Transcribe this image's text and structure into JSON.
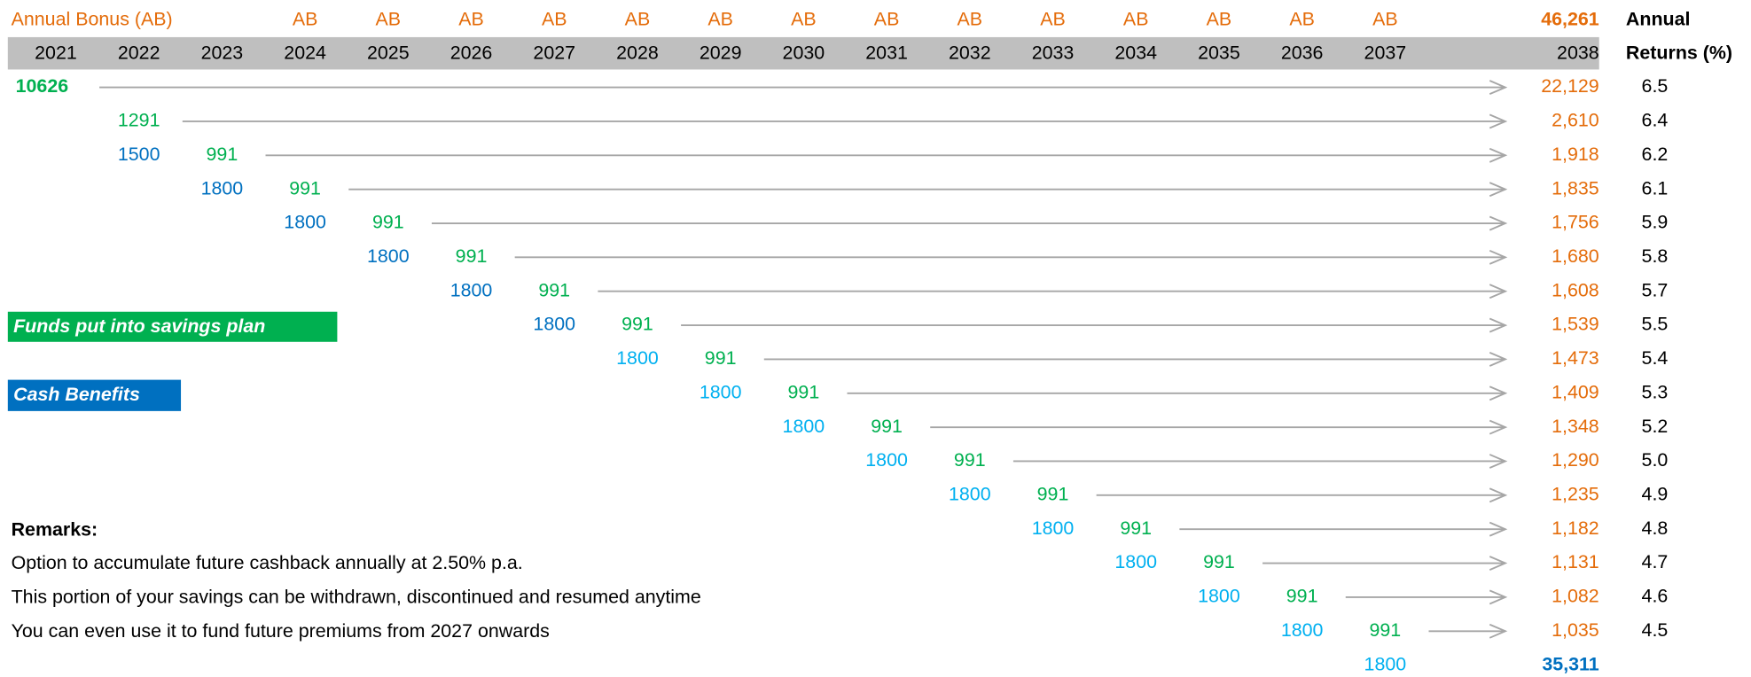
{
  "header": {
    "bonus_label": "Annual Bonus (AB)",
    "ab_marks": [
      "AB",
      "AB",
      "AB",
      "AB",
      "AB",
      "AB",
      "AB",
      "AB",
      "AB",
      "AB",
      "AB",
      "AB",
      "AB",
      "AB"
    ],
    "years": [
      "2021",
      "2022",
      "2023",
      "2024",
      "2025",
      "2026",
      "2027",
      "2028",
      "2029",
      "2030",
      "2031",
      "2032",
      "2033",
      "2034",
      "2035",
      "2036",
      "2037",
      "2038"
    ],
    "total_bonus": "46,261",
    "returns_title": [
      "Annual",
      "Returns (%)"
    ]
  },
  "rows": [
    {
      "cells": [
        "10626"
      ],
      "result": "22,129",
      "rate": "6.5"
    },
    {
      "cells": [
        null,
        "1291"
      ],
      "result": "2,610",
      "rate": "6.4"
    },
    {
      "cells": [
        null,
        "1500",
        "991"
      ],
      "result": "1,918",
      "rate": "6.2"
    },
    {
      "cells": [
        null,
        null,
        "1800",
        "991"
      ],
      "result": "1,835",
      "rate": "6.1"
    },
    {
      "cells": [
        null,
        null,
        null,
        "1800",
        "991"
      ],
      "result": "1,756",
      "rate": "5.9"
    },
    {
      "cells": [
        null,
        null,
        null,
        null,
        "1800",
        "991"
      ],
      "result": "1,680",
      "rate": "5.8"
    },
    {
      "cells": [
        null,
        null,
        null,
        null,
        null,
        "1800",
        "991"
      ],
      "result": "1,608",
      "rate": "5.7"
    },
    {
      "cells": [
        null,
        null,
        null,
        null,
        null,
        null,
        "1800",
        "991"
      ],
      "result": "1,539",
      "rate": "5.5"
    },
    {
      "cells": [
        null,
        null,
        null,
        null,
        null,
        null,
        null,
        "1800",
        "991"
      ],
      "result": "1,473",
      "rate": "5.4"
    },
    {
      "cells": [
        null,
        null,
        null,
        null,
        null,
        null,
        null,
        null,
        "1800",
        "991"
      ],
      "result": "1,409",
      "rate": "5.3"
    },
    {
      "cells": [
        null,
        null,
        null,
        null,
        null,
        null,
        null,
        null,
        null,
        "1800",
        "991"
      ],
      "result": "1,348",
      "rate": "5.2"
    },
    {
      "cells": [
        null,
        null,
        null,
        null,
        null,
        null,
        null,
        null,
        null,
        null,
        "1800",
        "991"
      ],
      "result": "1,290",
      "rate": "5.0"
    },
    {
      "cells": [
        null,
        null,
        null,
        null,
        null,
        null,
        null,
        null,
        null,
        null,
        null,
        "1800",
        "991"
      ],
      "result": "1,235",
      "rate": "4.9"
    },
    {
      "cells": [
        null,
        null,
        null,
        null,
        null,
        null,
        null,
        null,
        null,
        null,
        null,
        null,
        "1800",
        "991"
      ],
      "result": "1,182",
      "rate": "4.8"
    },
    {
      "cells": [
        null,
        null,
        null,
        null,
        null,
        null,
        null,
        null,
        null,
        null,
        null,
        null,
        null,
        "1800",
        "991"
      ],
      "result": "1,131",
      "rate": "4.7"
    },
    {
      "cells": [
        null,
        null,
        null,
        null,
        null,
        null,
        null,
        null,
        null,
        null,
        null,
        null,
        null,
        null,
        "1800",
        "991"
      ],
      "result": "1,082",
      "rate": "4.6"
    },
    {
      "cells": [
        null,
        null,
        null,
        null,
        null,
        null,
        null,
        null,
        null,
        null,
        null,
        null,
        null,
        null,
        null,
        "1800",
        "991"
      ],
      "result": "1,035",
      "rate": "4.5"
    }
  ],
  "final_row": {
    "cells": [
      null,
      null,
      null,
      null,
      null,
      null,
      null,
      null,
      null,
      null,
      null,
      null,
      null,
      null,
      null,
      null,
      "1800"
    ],
    "total": "35,311"
  },
  "legend": {
    "savings": "Funds put into savings plan",
    "cash": "Cash Benefits"
  },
  "remarks": {
    "title": "Remarks:",
    "lines": [
      "Option to accumulate future cashback annually at 2.50% p.a.",
      "This portion of your savings can be withdrawn, discontinued and resumed anytime",
      "You can even use it to fund future premiums from 2027 onwards"
    ]
  }
}
